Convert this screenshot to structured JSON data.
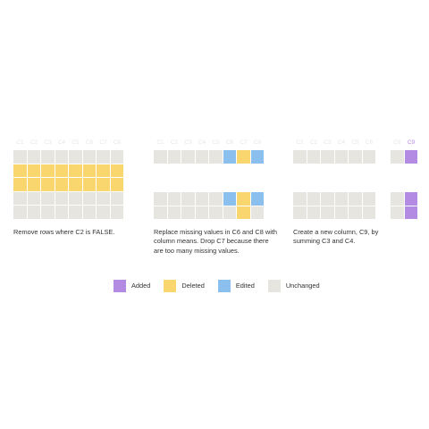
{
  "colors": {
    "added": "#b48be3",
    "deleted": "#f9d76e",
    "edited": "#8bbfee",
    "unchanged": "#e6e5e0"
  },
  "panels": [
    {
      "caption": "Remove rows where C2 is FALSE.",
      "before_headers": [
        "C1",
        "C2",
        "C3",
        "C4",
        "C5",
        "C6",
        "C7",
        "C8"
      ],
      "before_rows": [
        [
          "U",
          "U",
          "U",
          "U",
          "U",
          "U",
          "U",
          "U"
        ],
        [
          "D",
          "D",
          "D",
          "D",
          "D",
          "D",
          "D",
          "D"
        ],
        [
          "D",
          "D",
          "D",
          "D",
          "D",
          "D",
          "D",
          "D"
        ],
        [
          "U",
          "U",
          "U",
          "U",
          "U",
          "U",
          "U",
          "U"
        ],
        [
          "U",
          "U",
          "U",
          "U",
          "U",
          "U",
          "U",
          "U"
        ]
      ]
    },
    {
      "caption": "Replace missing values in C6 and C8 with column means. Drop C7 because there are too many missing values.",
      "before_headers": [
        "C1",
        "C2",
        "C3",
        "C4",
        "C5",
        "C6",
        "C7",
        "C8"
      ],
      "before_rows": [
        [
          "U",
          "U",
          "U",
          "U",
          "U",
          "E",
          "D",
          "E"
        ]
      ],
      "after_rows": [
        [
          "U",
          "U",
          "U",
          "U",
          "U",
          "E",
          "D",
          "E"
        ],
        [
          "U",
          "U",
          "U",
          "U",
          "U",
          "U",
          "D",
          "U"
        ]
      ]
    },
    {
      "caption": "Create a new column, C9, by summing C3 and C4.",
      "before_headers": [
        "C1",
        "C2",
        "C3",
        "C4",
        "C5",
        "C6",
        "C8",
        "C9"
      ],
      "before_rows": [
        [
          "U",
          "U",
          "U",
          "U",
          "U",
          "U",
          "U",
          "A"
        ]
      ],
      "after_rows": [
        [
          "U",
          "U",
          "U",
          "U",
          "U",
          "U",
          "U",
          "A"
        ],
        [
          "U",
          "U",
          "U",
          "U",
          "U",
          "U",
          "U",
          "A"
        ]
      ]
    }
  ],
  "legend": [
    {
      "label": "Added",
      "key": "added"
    },
    {
      "label": "Deleted",
      "key": "deleted"
    },
    {
      "label": "Edited",
      "key": "edited"
    },
    {
      "label": "Unchanged",
      "key": "unchanged"
    }
  ]
}
